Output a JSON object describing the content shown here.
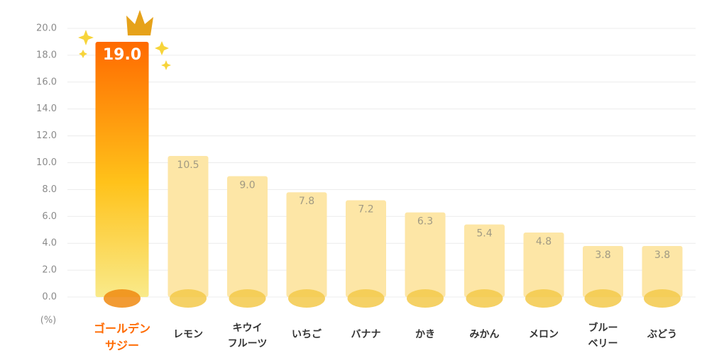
{
  "chart_data": {
    "type": "bar",
    "unit_label": "(%)",
    "categories": [
      "ゴールデン\nサジー",
      "レモン",
      "キウイ\nフルーツ",
      "いちご",
      "バナナ",
      "かき",
      "みかん",
      "メロン",
      "ブルー\nベリー",
      "ぶどう"
    ],
    "values": [
      19.0,
      10.5,
      9.0,
      7.8,
      7.2,
      6.3,
      5.4,
      4.8,
      3.8,
      3.8
    ],
    "value_labels": [
      "19.0",
      "10.5",
      "9.0",
      "7.8",
      "7.2",
      "6.3",
      "5.4",
      "4.8",
      "3.8",
      "3.8"
    ],
    "colors": [
      "#ff6a00",
      "#fde6a6",
      "#fde6a6",
      "#fde6a6",
      "#fde6a6",
      "#fde6a6",
      "#fde6a6",
      "#fde6a6",
      "#fde6a6",
      "#fde6a6"
    ],
    "ylim": [
      0,
      20
    ],
    "yticks": [
      {
        "value": 0,
        "label": "0.0"
      },
      {
        "value": 2,
        "label": "2.0"
      },
      {
        "value": 4,
        "label": "4.0"
      },
      {
        "value": 6,
        "label": "6.0"
      },
      {
        "value": 8,
        "label": "8.0"
      },
      {
        "value": 10,
        "label": "10.0"
      },
      {
        "value": 12,
        "label": "12.0"
      },
      {
        "value": 14,
        "label": "14.0"
      },
      {
        "value": 16,
        "label": "16.0"
      },
      {
        "value": 18,
        "label": "18.0"
      },
      {
        "value": 20,
        "label": "20.0"
      }
    ],
    "grid": true
  }
}
